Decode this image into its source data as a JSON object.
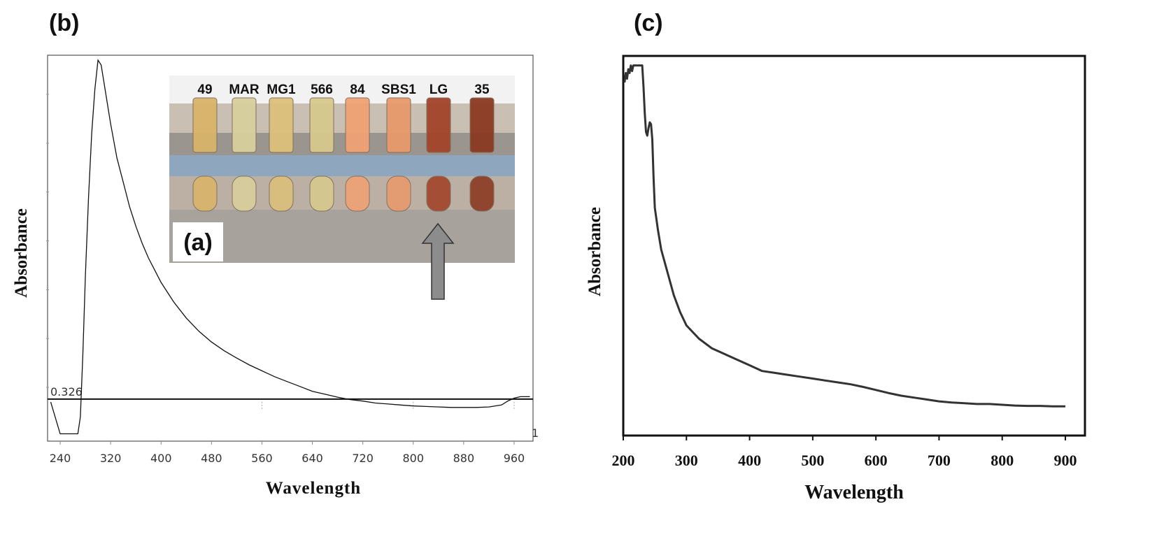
{
  "panels": {
    "b_label": "(b)",
    "c_label": "(c)",
    "a_label": "(a)"
  },
  "inset": {
    "tube_labels": [
      "49",
      "MAR",
      "MG1",
      "566",
      "84",
      "SBS1",
      "LG",
      "35"
    ],
    "tube_colors": [
      "#d9b46a",
      "#d8cf9c",
      "#dcc07a",
      "#d6c98d",
      "#f0a274",
      "#e89a6c",
      "#a2442a",
      "#8b3a22"
    ],
    "arrow_color": "#8c8c8c",
    "arrow_target": "LG"
  },
  "chart_data": [
    {
      "id": "b",
      "type": "line",
      "xlabel": "Wavelength",
      "ylabel": "Absorbance",
      "xlim": [
        220,
        990
      ],
      "xticks": [
        240,
        320,
        400,
        480,
        560,
        640,
        720,
        800,
        880,
        960
      ],
      "baseline_label": "0.326",
      "baseline_value": 0.326,
      "right_edge_label": "1",
      "ylim": [
        0.24,
        1.03
      ],
      "series": [
        {
          "x": [
            225,
            240,
            250,
            268,
            272,
            276,
            280,
            285,
            290,
            295,
            300,
            305,
            310,
            315,
            320,
            330,
            340,
            350,
            360,
            370,
            380,
            390,
            400,
            420,
            440,
            460,
            480,
            500,
            520,
            540,
            560,
            580,
            600,
            620,
            640,
            660,
            680,
            700,
            720,
            740,
            760,
            780,
            800,
            820,
            840,
            860,
            880,
            900,
            920,
            940,
            950,
            960,
            970,
            985
          ],
          "y": [
            0.32,
            0.255,
            0.255,
            0.255,
            0.29,
            0.42,
            0.58,
            0.74,
            0.87,
            0.96,
            1.02,
            1.01,
            0.97,
            0.93,
            0.89,
            0.82,
            0.77,
            0.72,
            0.68,
            0.645,
            0.615,
            0.59,
            0.565,
            0.525,
            0.492,
            0.465,
            0.443,
            0.425,
            0.41,
            0.396,
            0.384,
            0.372,
            0.362,
            0.352,
            0.342,
            0.336,
            0.33,
            0.325,
            0.322,
            0.318,
            0.316,
            0.314,
            0.312,
            0.311,
            0.31,
            0.309,
            0.309,
            0.309,
            0.31,
            0.314,
            0.322,
            0.328,
            0.331,
            0.331
          ]
        }
      ]
    },
    {
      "id": "c",
      "type": "line",
      "xlabel": "Wavelength",
      "ylabel": "Absorbance",
      "xlim": [
        200,
        930
      ],
      "xticks": [
        200,
        300,
        400,
        500,
        600,
        700,
        800,
        900
      ],
      "ylim": [
        0,
        1
      ],
      "series": [
        {
          "x": [
            202,
            204,
            206,
            208,
            210,
            212,
            214,
            216,
            218,
            220,
            222,
            224,
            226,
            228,
            230,
            232,
            234,
            236,
            238,
            240,
            242,
            244,
            246,
            248,
            250,
            255,
            260,
            270,
            280,
            290,
            300,
            320,
            340,
            360,
            380,
            400,
            420,
            440,
            460,
            480,
            500,
            520,
            540,
            560,
            580,
            600,
            620,
            640,
            660,
            680,
            700,
            720,
            740,
            760,
            780,
            800,
            820,
            840,
            860,
            880,
            900
          ],
          "y": [
            0.93,
            0.955,
            0.94,
            0.965,
            0.955,
            0.975,
            0.96,
            0.975,
            0.975,
            0.975,
            0.975,
            0.975,
            0.975,
            0.975,
            0.975,
            0.92,
            0.85,
            0.8,
            0.79,
            0.81,
            0.825,
            0.82,
            0.78,
            0.68,
            0.6,
            0.54,
            0.49,
            0.43,
            0.37,
            0.325,
            0.29,
            0.255,
            0.23,
            0.215,
            0.2,
            0.185,
            0.17,
            0.165,
            0.16,
            0.155,
            0.15,
            0.145,
            0.14,
            0.135,
            0.128,
            0.12,
            0.112,
            0.105,
            0.1,
            0.095,
            0.09,
            0.087,
            0.085,
            0.083,
            0.083,
            0.081,
            0.079,
            0.078,
            0.078,
            0.077,
            0.077
          ]
        }
      ]
    }
  ]
}
